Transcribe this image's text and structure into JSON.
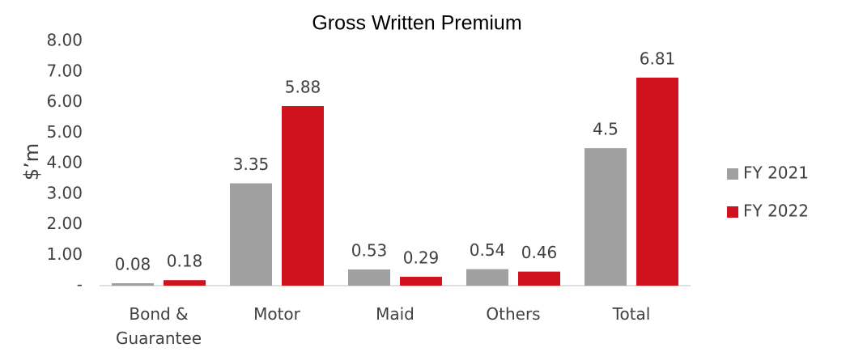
{
  "chart_data": {
    "type": "bar",
    "title": "Gross Written Premium",
    "y_label": "$’m",
    "categories": [
      "Bond & Guarantee",
      "Motor",
      "Maid",
      "Others",
      "Total"
    ],
    "series": [
      {
        "name": "FY 2021",
        "color": "#a0a0a0",
        "values": [
          0.08,
          3.35,
          0.53,
          0.54,
          4.5
        ]
      },
      {
        "name": "FY 2022",
        "color": "#d0111e",
        "values": [
          0.18,
          5.88,
          0.29,
          0.46,
          6.81
        ]
      }
    ],
    "ylim": [
      0,
      8
    ],
    "yticks": [
      {
        "value": 0,
        "label": "-"
      },
      {
        "value": 1,
        "label": "1.00"
      },
      {
        "value": 2,
        "label": "2.00"
      },
      {
        "value": 3,
        "label": "3.00"
      },
      {
        "value": 4,
        "label": "4.00"
      },
      {
        "value": 5,
        "label": "5.00"
      },
      {
        "value": 6,
        "label": "6.00"
      },
      {
        "value": 7,
        "label": "7.00"
      },
      {
        "value": 8,
        "label": "8.00"
      }
    ],
    "grid": false,
    "legend": "right"
  }
}
